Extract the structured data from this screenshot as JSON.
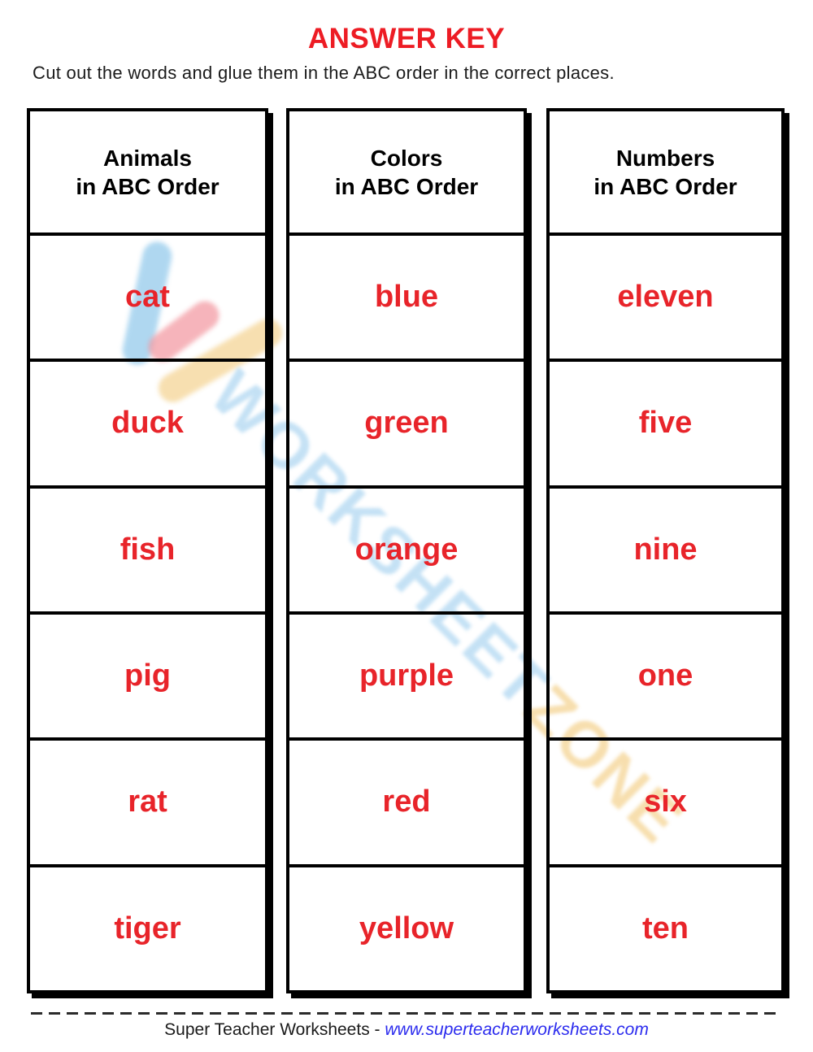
{
  "page": {
    "title": "ANSWER KEY",
    "instruction": "Cut out the words and glue them in the ABC order in the correct places."
  },
  "columns": [
    {
      "header_line1": "Animals",
      "header_line2": "in ABC Order",
      "words": [
        "cat",
        "duck",
        "fish",
        "pig",
        "rat",
        "tiger"
      ]
    },
    {
      "header_line1": "Colors",
      "header_line2": "in ABC Order",
      "words": [
        "blue",
        "green",
        "orange",
        "purple",
        "red",
        "yellow"
      ]
    },
    {
      "header_line1": "Numbers",
      "header_line2": "in ABC Order",
      "words": [
        "eleven",
        "five",
        "nine",
        "one",
        "six",
        "ten"
      ]
    }
  ],
  "footer": {
    "brand": "Super Teacher Worksheets - ",
    "url": "www.superteacherworksheets.com"
  },
  "watermark": {
    "text_part1": "WORKSHEET",
    "text_part2": "ZONE"
  },
  "colors": {
    "accent_red": "#ed1c24",
    "word_red": "#e8242a",
    "url_blue": "#2b2bee",
    "watermark_blue": "#aed6f1",
    "watermark_blue_stroke": "#7fc0e8",
    "watermark_red_stroke": "#f2929b",
    "watermark_yellow": "#f4d28f"
  }
}
